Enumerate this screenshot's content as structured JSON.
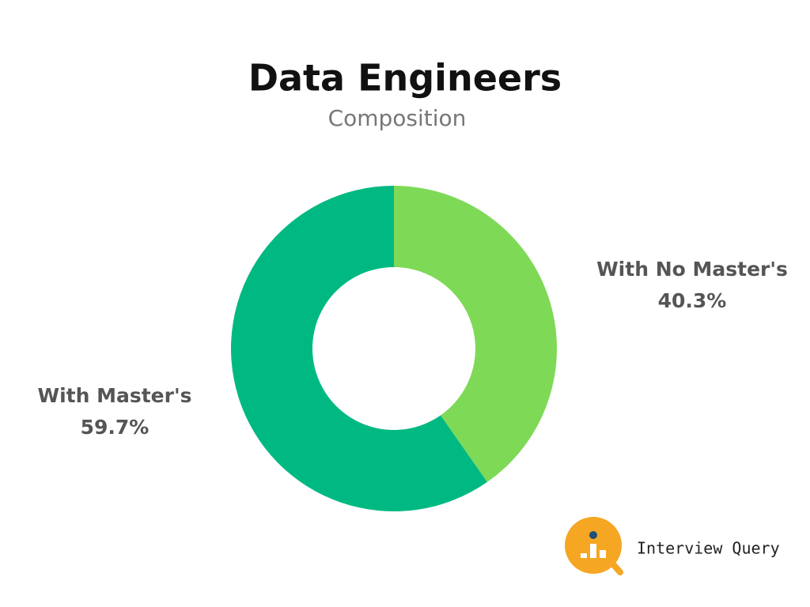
{
  "chart_data": {
    "type": "donut",
    "title": "Data Engineers",
    "subtitle": "Composition",
    "categories": [
      "With No Master's",
      "With Master's"
    ],
    "values": [
      40.3,
      59.7
    ],
    "value_labels": [
      "40.3%",
      "59.7%"
    ],
    "colors": [
      "#7ed957",
      "#00b982"
    ]
  },
  "branding": "Interview Query"
}
